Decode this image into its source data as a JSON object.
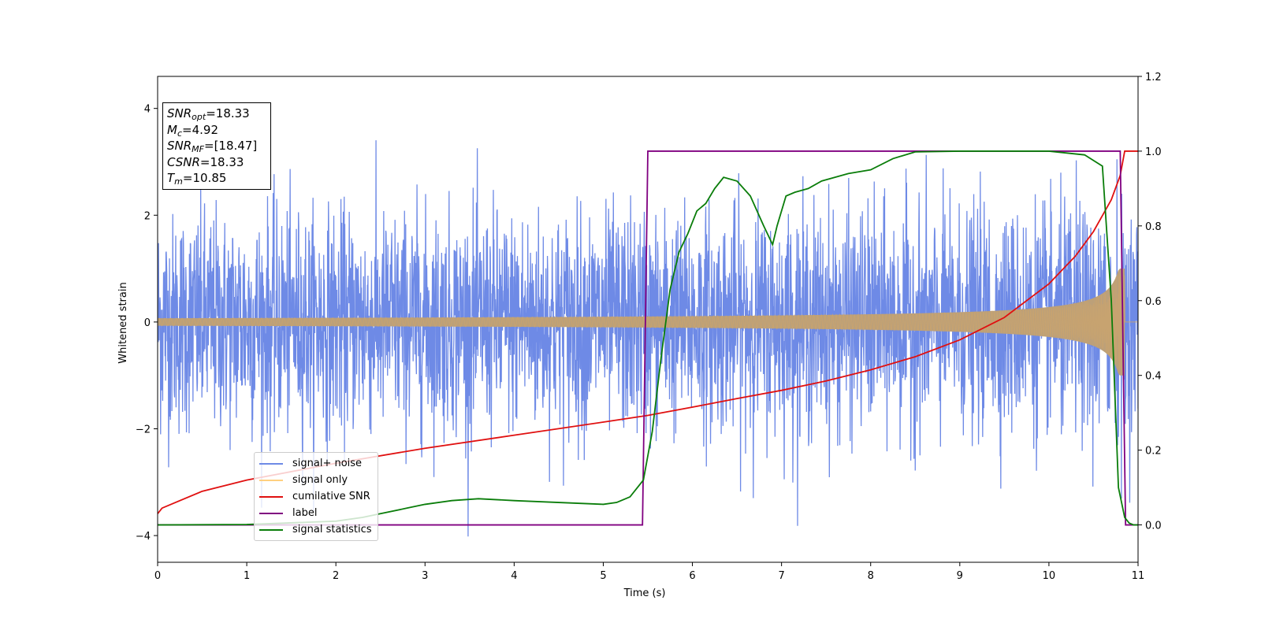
{
  "chart_data": {
    "type": "line",
    "xlabel": "Time (s)",
    "ylabel": "Whitened strain",
    "xlim": [
      0,
      11
    ],
    "ylim": [
      -4.5,
      4.6
    ],
    "y2lim": [
      -0.1,
      1.2
    ],
    "xticks": [
      "0",
      "1",
      "2",
      "3",
      "4",
      "5",
      "6",
      "7",
      "8",
      "9",
      "10",
      "11"
    ],
    "yticks": [
      "−4",
      "−2",
      "0",
      "2",
      "4"
    ],
    "y2ticks": [
      "0.0",
      "0.2",
      "0.4",
      "0.6",
      "0.8",
      "1.0",
      "1.2"
    ],
    "annotations": {
      "snr_opt": {
        "sym": "SNR",
        "sub": "opt",
        "value": "=18.33"
      },
      "mc": {
        "sym": "M",
        "sub": "c",
        "value": "=4.92"
      },
      "snr_mf": {
        "sym": "SNR",
        "sub": "MF",
        "value": "=[18.47]"
      },
      "csnr": {
        "sym": "CSNR",
        "value": "=18.33"
      },
      "tm": {
        "sym": "T",
        "sub": "m",
        "value": "=10.85"
      }
    },
    "legend_placement": "lower-left",
    "series": [
      {
        "name": "signal+ noise",
        "color": "#6e8ae6",
        "axis": "left",
        "description_values": "whitened strain noise, std ~1.05, range about -4.1 to 4.2 over 0 to 11 s"
      },
      {
        "name": "signal only",
        "color": "#ffd080",
        "axis": "left",
        "description_values": "chirp with amplitude growing from ~0.07 at t=0 to ~1.0 near t=10.85, merging at 10.85"
      },
      {
        "name": "cumilative SNR",
        "color": "#e01010",
        "axis": "right",
        "x": [
          0,
          0.05,
          0.5,
          1,
          2,
          3,
          4,
          5,
          5.5,
          6,
          6.5,
          7,
          7.5,
          8,
          8.5,
          9,
          9.5,
          10,
          10.3,
          10.5,
          10.7,
          10.8,
          10.85,
          11
        ],
        "y": [
          0.03,
          0.045,
          0.09,
          0.12,
          0.165,
          0.205,
          0.24,
          0.275,
          0.293,
          0.315,
          0.338,
          0.36,
          0.385,
          0.415,
          0.45,
          0.495,
          0.555,
          0.645,
          0.72,
          0.785,
          0.87,
          0.935,
          1.0,
          1.0
        ]
      },
      {
        "name": "label",
        "color": "#800080",
        "axis": "right",
        "x": [
          0,
          5.44,
          5.5,
          10.8,
          10.86,
          11
        ],
        "y": [
          0,
          0,
          1,
          1,
          0,
          0
        ]
      },
      {
        "name": "signal statistics",
        "color": "#0a7d0a",
        "axis": "right",
        "x": [
          0,
          1,
          2,
          2.3,
          2.5,
          2.8,
          3.0,
          3.3,
          3.6,
          4.0,
          4.5,
          5.0,
          5.15,
          5.3,
          5.45,
          5.55,
          5.65,
          5.75,
          5.85,
          5.95,
          6.05,
          6.15,
          6.25,
          6.35,
          6.5,
          6.65,
          6.8,
          6.9,
          6.95,
          7.05,
          7.15,
          7.3,
          7.45,
          7.6,
          7.75,
          8.0,
          8.25,
          8.5,
          9.0,
          9.5,
          10.0,
          10.4,
          10.6,
          10.7,
          10.78,
          10.85,
          10.9,
          10.95,
          11.0
        ],
        "y": [
          0.0,
          0.001,
          0.01,
          0.02,
          0.03,
          0.045,
          0.055,
          0.065,
          0.07,
          0.065,
          0.06,
          0.055,
          0.06,
          0.075,
          0.12,
          0.25,
          0.45,
          0.63,
          0.73,
          0.78,
          0.84,
          0.86,
          0.9,
          0.93,
          0.92,
          0.88,
          0.8,
          0.75,
          0.8,
          0.88,
          0.89,
          0.9,
          0.92,
          0.93,
          0.94,
          0.95,
          0.98,
          0.998,
          1.0,
          1.0,
          1.0,
          0.99,
          0.96,
          0.6,
          0.1,
          0.02,
          0.005,
          0.0,
          0.0
        ]
      }
    ]
  }
}
